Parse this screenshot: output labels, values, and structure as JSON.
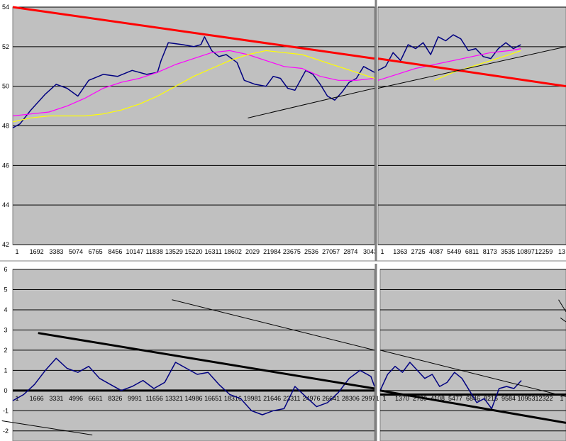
{
  "chart_data": [
    {
      "panel": "top-left",
      "type": "line",
      "ylim": [
        42,
        54
      ],
      "y_ticks": [
        "42",
        "44",
        "46",
        "48",
        "50",
        "52",
        "54"
      ],
      "x_tick_labels": [
        "1",
        "1692",
        "3383",
        "5074",
        "6765",
        "8456",
        "10147",
        "11838",
        "13529",
        "15220",
        "16311",
        "18602",
        "2029",
        "21984",
        "23675",
        "2536",
        "27057",
        "2874",
        "3043"
      ],
      "grid": true,
      "series": [
        {
          "key": "price",
          "color": "#000080",
          "x": [
            0,
            0.02,
            0.05,
            0.09,
            0.12,
            0.15,
            0.18,
            0.21,
            0.25,
            0.29,
            0.33,
            0.37,
            0.4,
            0.41,
            0.43,
            0.47,
            0.5,
            0.52,
            0.53,
            0.55,
            0.57,
            0.59,
            0.62,
            0.64,
            0.67,
            0.7,
            0.72,
            0.74,
            0.76,
            0.78,
            0.81,
            0.83,
            0.85,
            0.87,
            0.89,
            0.91,
            0.93,
            0.95,
            0.97,
            0.99,
            1.0
          ],
          "values": [
            47.9,
            48.1,
            48.8,
            49.6,
            50.1,
            49.9,
            49.5,
            50.3,
            50.6,
            50.5,
            50.8,
            50.6,
            50.7,
            51.3,
            52.2,
            52.1,
            52.0,
            52.1,
            52.5,
            51.8,
            51.5,
            51.6,
            51.2,
            50.3,
            50.1,
            50.0,
            50.5,
            50.4,
            49.9,
            49.8,
            50.8,
            50.6,
            50.1,
            49.5,
            49.3,
            49.7,
            50.2,
            50.4,
            51.0,
            50.8,
            50.7
          ]
        },
        {
          "key": "ma-short",
          "color": "#ff00ff",
          "x": [
            0,
            0.05,
            0.1,
            0.15,
            0.2,
            0.25,
            0.3,
            0.35,
            0.4,
            0.45,
            0.5,
            0.55,
            0.6,
            0.65,
            0.7,
            0.75,
            0.8,
            0.85,
            0.9,
            0.95,
            1.0
          ],
          "values": [
            48.5,
            48.6,
            48.7,
            49.0,
            49.4,
            49.9,
            50.2,
            50.4,
            50.7,
            51.1,
            51.4,
            51.7,
            51.8,
            51.6,
            51.3,
            51.0,
            50.9,
            50.5,
            50.3,
            50.3,
            50.4
          ]
        },
        {
          "key": "ma-long",
          "color": "#ffff00",
          "x": [
            0,
            0.05,
            0.1,
            0.15,
            0.2,
            0.25,
            0.3,
            0.35,
            0.4,
            0.45,
            0.5,
            0.55,
            0.6,
            0.65,
            0.7,
            0.75,
            0.8,
            0.85,
            0.9,
            0.95,
            1.0
          ],
          "values": [
            48.2,
            48.4,
            48.5,
            48.5,
            48.5,
            48.6,
            48.8,
            49.1,
            49.5,
            50.0,
            50.5,
            50.9,
            51.3,
            51.6,
            51.8,
            51.7,
            51.6,
            51.3,
            51.0,
            50.7,
            50.4
          ]
        }
      ],
      "trendlines": [
        {
          "color": "#ff0000",
          "width": "thick",
          "from": [
            0,
            54.0
          ],
          "to": [
            1.0,
            51.4
          ]
        },
        {
          "color": "#000000",
          "width": "thin",
          "from": [
            0.65,
            48.4
          ],
          "to": [
            1.0,
            49.9
          ]
        }
      ]
    },
    {
      "panel": "top-right",
      "type": "line",
      "ylim": [
        42,
        54
      ],
      "x_tick_labels": [
        "1",
        "1363",
        "2725",
        "4087",
        "5449",
        "6811",
        "8173",
        "3535",
        "10897",
        "12259",
        "13"
      ],
      "grid": true,
      "series": [
        {
          "key": "price",
          "color": "#000080",
          "x": [
            0.0,
            0.04,
            0.08,
            0.12,
            0.16,
            0.2,
            0.24,
            0.28,
            0.32,
            0.36,
            0.4,
            0.44,
            0.48,
            0.52,
            0.56,
            0.6,
            0.64,
            0.68,
            0.72,
            0.76
          ],
          "values": [
            50.8,
            51.0,
            51.7,
            51.3,
            52.1,
            51.9,
            52.2,
            51.6,
            52.5,
            52.3,
            52.6,
            52.4,
            51.8,
            51.9,
            51.5,
            51.4,
            51.9,
            52.2,
            51.9,
            52.1
          ]
        },
        {
          "key": "ma-short",
          "color": "#ff00ff",
          "x": [
            0.0,
            0.1,
            0.2,
            0.3,
            0.4,
            0.5,
            0.6,
            0.7,
            0.76
          ],
          "values": [
            50.3,
            50.6,
            50.9,
            51.1,
            51.3,
            51.5,
            51.7,
            51.8,
            51.9
          ]
        },
        {
          "key": "ma-long",
          "color": "#ffff00",
          "x": [
            0.3,
            0.4,
            0.5,
            0.6,
            0.7,
            0.76
          ],
          "values": [
            50.3,
            50.7,
            51.0,
            51.3,
            51.6,
            51.8
          ]
        }
      ],
      "trendlines": [
        {
          "color": "#ff0000",
          "width": "thick",
          "from": [
            0,
            51.4
          ],
          "to": [
            1.0,
            50.0
          ]
        },
        {
          "color": "#000000",
          "width": "thin",
          "from": [
            0,
            49.9
          ],
          "to": [
            1.0,
            52.0
          ]
        }
      ]
    },
    {
      "panel": "bottom-left",
      "type": "line",
      "ylim": [
        -2.5,
        6
      ],
      "y_ticks": [
        "-2",
        "-1",
        "0",
        "1",
        "2",
        "3",
        "4",
        "5",
        "6"
      ],
      "x_tick_labels": [
        "1",
        "1666",
        "3331",
        "4996",
        "6661",
        "8326",
        "9991",
        "11656",
        "13321",
        "14986",
        "16651",
        "18316",
        "19981",
        "21646",
        "23311",
        "24976",
        "26641",
        "28306",
        "29971"
      ],
      "grid": true,
      "series": [
        {
          "key": "oscillator",
          "color": "#000080",
          "x": [
            0,
            0.03,
            0.06,
            0.09,
            0.12,
            0.15,
            0.18,
            0.21,
            0.24,
            0.27,
            0.3,
            0.33,
            0.36,
            0.39,
            0.42,
            0.45,
            0.48,
            0.51,
            0.54,
            0.57,
            0.6,
            0.63,
            0.66,
            0.69,
            0.72,
            0.75,
            0.78,
            0.81,
            0.84,
            0.87,
            0.9,
            0.93,
            0.96,
            0.99,
            1.0
          ],
          "values": [
            -0.5,
            -0.2,
            0.3,
            1.0,
            1.6,
            1.1,
            0.9,
            1.2,
            0.6,
            0.3,
            0.0,
            0.2,
            0.5,
            0.1,
            0.4,
            1.4,
            1.1,
            0.8,
            0.9,
            0.3,
            -0.2,
            -0.4,
            -1.0,
            -1.2,
            -1.0,
            -0.9,
            0.2,
            -0.3,
            -0.8,
            -0.6,
            -0.1,
            0.6,
            1.0,
            0.7,
            0.2
          ]
        }
      ],
      "reference_lines": [
        {
          "value": 0,
          "color": "#000000",
          "width": "thick"
        }
      ],
      "trendlines": [
        {
          "color": "#000000",
          "width": "thick",
          "from": [
            0.07,
            2.85
          ],
          "to": [
            1.0,
            0.1
          ]
        },
        {
          "color": "#000000",
          "width": "thin",
          "from": [
            0.44,
            4.5
          ],
          "to": [
            1.0,
            2.0
          ]
        },
        {
          "color": "#000000",
          "width": "thin",
          "from": [
            -0.03,
            -1.5
          ],
          "to": [
            0.22,
            -2.2
          ]
        }
      ]
    },
    {
      "panel": "bottom-right",
      "type": "line",
      "ylim": [
        -2.5,
        6
      ],
      "x_tick_labels": [
        "1",
        "1370",
        "2739",
        "4108",
        "5477",
        "6846",
        "8215",
        "9584",
        "10953",
        "12322",
        "1"
      ],
      "grid": true,
      "series": [
        {
          "key": "oscillator",
          "color": "#000080",
          "x": [
            0.0,
            0.04,
            0.08,
            0.12,
            0.16,
            0.2,
            0.24,
            0.28,
            0.32,
            0.36,
            0.4,
            0.44,
            0.48,
            0.52,
            0.56,
            0.6,
            0.64,
            0.68,
            0.72,
            0.76
          ],
          "values": [
            0.0,
            0.8,
            1.2,
            0.9,
            1.4,
            1.0,
            0.6,
            0.8,
            0.2,
            0.4,
            0.9,
            0.6,
            0.0,
            -0.6,
            -0.4,
            -0.9,
            0.1,
            0.2,
            0.1,
            0.5
          ]
        }
      ],
      "reference_lines": [
        {
          "value": -0.2,
          "color": "#000000",
          "width": "thick"
        }
      ],
      "trendlines": [
        {
          "color": "#000000",
          "width": "thin",
          "from": [
            0,
            2.0
          ],
          "to": [
            1.0,
            -0.3
          ]
        },
        {
          "color": "#000000",
          "width": "thick",
          "from": [
            0,
            0.0
          ],
          "to": [
            1.0,
            -1.6
          ]
        },
        {
          "color": "#000000",
          "width": "thin",
          "from": [
            0.96,
            4.5
          ],
          "to": [
            1.0,
            3.9
          ]
        },
        {
          "color": "#000000",
          "width": "thin",
          "from": [
            0.97,
            3.6
          ],
          "to": [
            1.0,
            3.4
          ]
        }
      ]
    }
  ]
}
